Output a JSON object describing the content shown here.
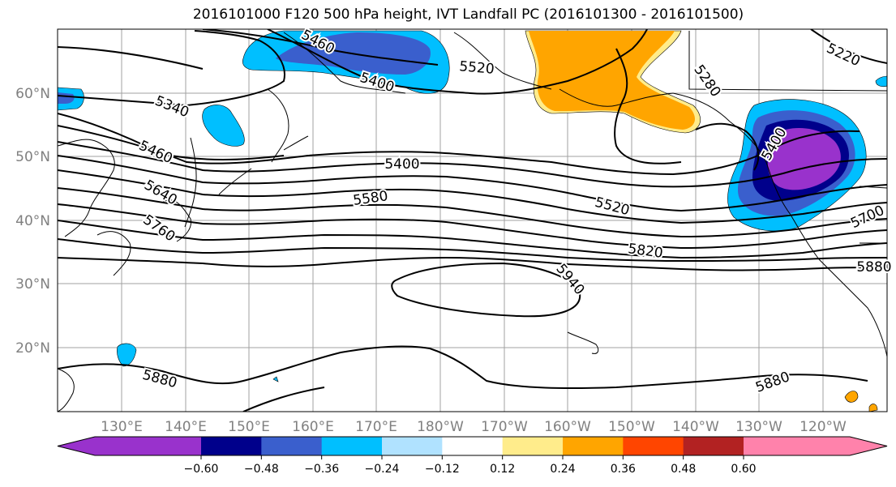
{
  "title": "2016101000 F120 500 hPa height, IVT Landfall PC (2016101300 - 2016101500)",
  "lat_labels": [
    "60°N",
    "50°N",
    "40°N",
    "30°N",
    "20°N"
  ],
  "lon_labels": [
    "130°E",
    "140°E",
    "150°E",
    "160°E",
    "170°E",
    "180°W",
    "170°W",
    "160°W",
    "150°W",
    "140°W",
    "130°W",
    "120°W"
  ],
  "contour_labels": {
    "c5460_top": "5460",
    "c5520_top": "5520",
    "c5400_top": "5400",
    "c5280": "5280",
    "c5220": "5220",
    "c5340": "5340",
    "c5460_left": "5460",
    "c5400_mid": "5400",
    "c5640": "5640",
    "c5580": "5580",
    "c5520_mid": "5520",
    "c5760": "5760",
    "c5820": "5820",
    "c5940": "5940",
    "c5700": "5700",
    "c5880_right": "5880",
    "c5880_left": "5880",
    "c5880_bottom": "5880",
    "c5400_pnw": "5400"
  },
  "colorbar": {
    "colors": [
      "#9932CC",
      "#00008B",
      "#3A5FCD",
      "#00BFFF",
      "#B0E2FF",
      "#FFFFFF",
      "#FFEC8B",
      "#FFA500",
      "#FF4500",
      "#B22222",
      "#FF82AB"
    ],
    "tick_labels": [
      "−0.60",
      "−0.48",
      "−0.36",
      "−0.24",
      "−0.12",
      "0.12",
      "0.24",
      "0.36",
      "0.48",
      "0.60"
    ]
  }
}
